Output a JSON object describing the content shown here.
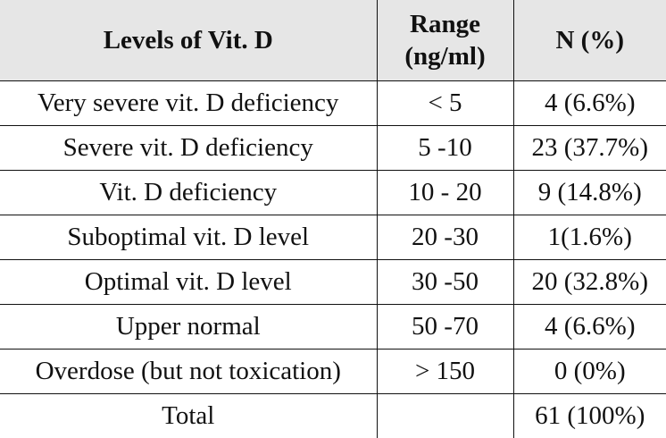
{
  "table": {
    "header": [
      "Levels of Vit. D",
      "Range (ng/ml)",
      "N (%)"
    ],
    "rows": [
      [
        "Very severe vit. D deficiency",
        "< 5",
        "4 (6.6%)"
      ],
      [
        "Severe vit. D deficiency",
        "5 -10",
        "23 (37.7%)"
      ],
      [
        "Vit. D deficiency",
        "10 - 20",
        "9 (14.8%)"
      ],
      [
        "Suboptimal vit. D level",
        "20 -30",
        "1(1.6%)"
      ],
      [
        "Optimal vit. D level",
        "30 -50",
        "20 (32.8%)"
      ],
      [
        "Upper normal",
        "50 -70",
        "4 (6.6%)"
      ],
      [
        "Overdose (but not toxication)",
        "> 150",
        "0 (0%)"
      ],
      [
        "Total",
        "",
        "61 (100%)"
      ]
    ]
  }
}
